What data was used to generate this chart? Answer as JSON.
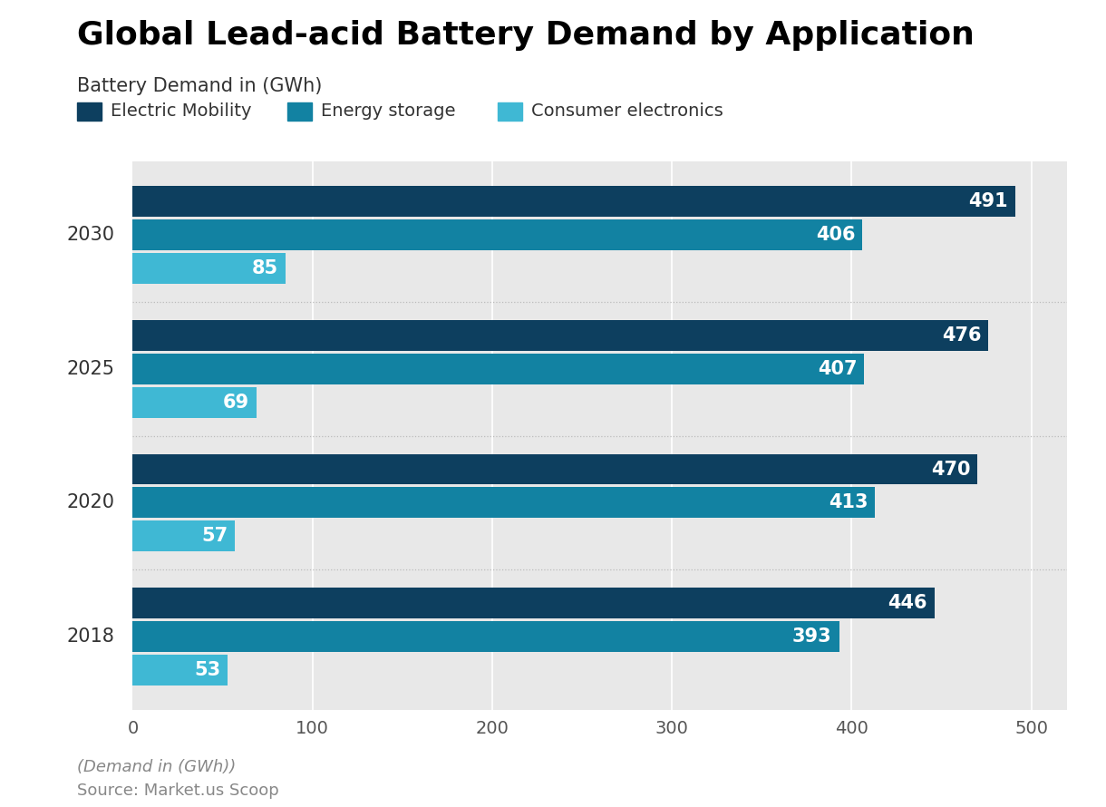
{
  "title": "Global Lead-acid Battery Demand by Application",
  "subtitle": "Battery Demand in (GWh)",
  "footer_italic": "(Demand in (GWh))",
  "footer_source": "Source: Market.us Scoop",
  "years": [
    "2030",
    "2025",
    "2020",
    "2018"
  ],
  "categories": [
    "Electric Mobility",
    "Energy storage",
    "Consumer electronics"
  ],
  "colors": [
    "#0d3f5f",
    "#1282a2",
    "#3fb8d4"
  ],
  "data": {
    "Electric Mobility": [
      491,
      476,
      470,
      446
    ],
    "Energy storage": [
      406,
      407,
      413,
      393
    ],
    "Consumer electronics": [
      85,
      69,
      57,
      53
    ]
  },
  "xlim": [
    0,
    520
  ],
  "xticks": [
    0,
    100,
    200,
    300,
    400,
    500
  ],
  "plot_bg": "#e8e8e8",
  "title_fontsize": 26,
  "subtitle_fontsize": 15,
  "legend_fontsize": 14,
  "tick_fontsize": 14,
  "year_fontsize": 15,
  "value_fontsize": 15,
  "footer_fontsize": 13
}
